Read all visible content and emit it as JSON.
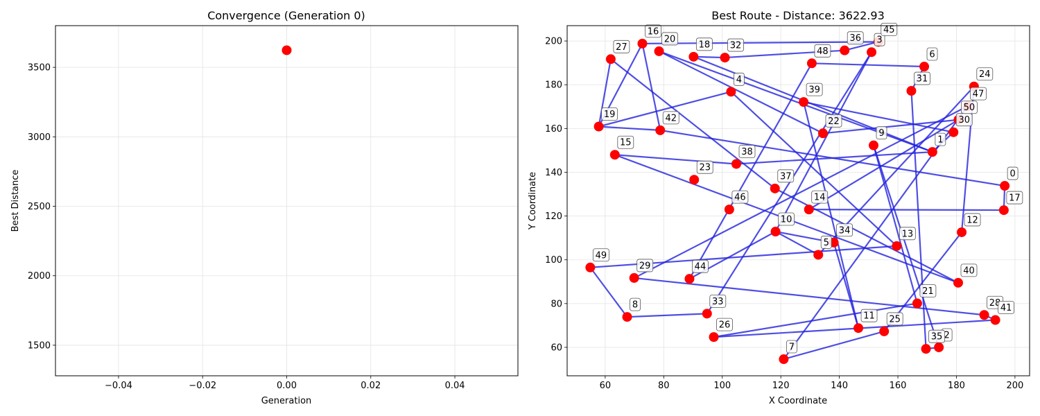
{
  "chart_data": [
    {
      "type": "scatter",
      "title": "Convergence (Generation 0)",
      "xlabel": "Generation",
      "ylabel": "Best Distance",
      "xlim": [
        -0.055,
        0.055
      ],
      "ylim": [
        1280,
        3800
      ],
      "xticks": [
        -0.04,
        -0.02,
        0.0,
        0.02,
        0.04
      ],
      "xtick_labels": [
        "−0.04",
        "−0.02",
        "0.00",
        "0.02",
        "0.04"
      ],
      "yticks": [
        1500,
        2000,
        2500,
        3000,
        3500
      ],
      "ytick_labels": [
        "1500",
        "2000",
        "2500",
        "3000",
        "3500"
      ],
      "grid": true,
      "marker_color": "#ff0000",
      "points": [
        {
          "x": 0.0,
          "y": 3622.93
        }
      ]
    },
    {
      "type": "line",
      "title": "Best Route - Distance: 3622.93",
      "xlabel": "X Coordinate",
      "ylabel": "Y Coordinate",
      "xlim": [
        47,
        205
      ],
      "ylim": [
        47,
        207
      ],
      "xticks": [
        60,
        80,
        100,
        120,
        140,
        160,
        180,
        200
      ],
      "xtick_labels": [
        "60",
        "80",
        "100",
        "120",
        "140",
        "160",
        "180",
        "200"
      ],
      "yticks": [
        60,
        80,
        100,
        120,
        140,
        160,
        180,
        200
      ],
      "ytick_labels": [
        "60",
        "80",
        "100",
        "120",
        "140",
        "160",
        "180",
        "200"
      ],
      "grid": true,
      "line_color": "#2222dd",
      "marker_color": "#ff0000",
      "cities": [
        {
          "id": "0",
          "x": 196.5,
          "y": 133.8
        },
        {
          "id": "1",
          "x": 171.8,
          "y": 149.3
        },
        {
          "id": "2",
          "x": 174.0,
          "y": 60.0
        },
        {
          "id": "3",
          "x": 151.0,
          "y": 194.9
        },
        {
          "id": "4",
          "x": 103.0,
          "y": 176.8
        },
        {
          "id": "5",
          "x": 132.8,
          "y": 102.3
        },
        {
          "id": "6",
          "x": 169.0,
          "y": 188.3
        },
        {
          "id": "7",
          "x": 121.0,
          "y": 54.6
        },
        {
          "id": "8",
          "x": 67.5,
          "y": 73.9
        },
        {
          "id": "9",
          "x": 151.7,
          "y": 152.3
        },
        {
          "id": "10",
          "x": 118.2,
          "y": 112.9
        },
        {
          "id": "11",
          "x": 146.5,
          "y": 68.8
        },
        {
          "id": "12",
          "x": 181.8,
          "y": 112.6
        },
        {
          "id": "13",
          "x": 159.6,
          "y": 106.3
        },
        {
          "id": "14",
          "x": 129.6,
          "y": 123.0
        },
        {
          "id": "15",
          "x": 63.3,
          "y": 148.0
        },
        {
          "id": "16",
          "x": 72.7,
          "y": 198.8
        },
        {
          "id": "17",
          "x": 196.2,
          "y": 122.7
        },
        {
          "id": "18",
          "x": 90.2,
          "y": 192.8
        },
        {
          "id": "19",
          "x": 57.8,
          "y": 160.9
        },
        {
          "id": "20",
          "x": 78.4,
          "y": 195.3
        },
        {
          "id": "21",
          "x": 166.6,
          "y": 80.1
        },
        {
          "id": "22",
          "x": 134.4,
          "y": 157.8
        },
        {
          "id": "23",
          "x": 90.4,
          "y": 136.6
        },
        {
          "id": "24",
          "x": 186.0,
          "y": 179.2
        },
        {
          "id": "25",
          "x": 155.3,
          "y": 67.3
        },
        {
          "id": "26",
          "x": 97.1,
          "y": 64.7
        },
        {
          "id": "27",
          "x": 61.9,
          "y": 191.7
        },
        {
          "id": "28",
          "x": 189.5,
          "y": 74.8
        },
        {
          "id": "29",
          "x": 69.9,
          "y": 91.7
        },
        {
          "id": "30",
          "x": 179.0,
          "y": 158.3
        },
        {
          "id": "31",
          "x": 164.6,
          "y": 177.2
        },
        {
          "id": "32",
          "x": 100.9,
          "y": 192.4
        },
        {
          "id": "33",
          "x": 94.8,
          "y": 75.4
        },
        {
          "id": "34",
          "x": 138.1,
          "y": 107.9
        },
        {
          "id": "35",
          "x": 169.6,
          "y": 59.3
        },
        {
          "id": "36",
          "x": 141.8,
          "y": 195.7
        },
        {
          "id": "37",
          "x": 118.0,
          "y": 132.6
        },
        {
          "id": "38",
          "x": 104.8,
          "y": 143.8
        },
        {
          "id": "39",
          "x": 127.8,
          "y": 172.1
        },
        {
          "id": "40",
          "x": 180.6,
          "y": 89.5
        },
        {
          "id": "41",
          "x": 193.3,
          "y": 72.5
        },
        {
          "id": "42",
          "x": 78.8,
          "y": 159.2
        },
        {
          "id": "44",
          "x": 88.8,
          "y": 91.3
        },
        {
          "id": "45",
          "x": 153.3,
          "y": 199.6
        },
        {
          "id": "46",
          "x": 102.4,
          "y": 123.0
        },
        {
          "id": "47",
          "x": 183.8,
          "y": 170.2
        },
        {
          "id": "48",
          "x": 130.6,
          "y": 189.8
        },
        {
          "id": "49",
          "x": 54.9,
          "y": 96.5
        },
        {
          "id": "50",
          "x": 180.7,
          "y": 164.0
        }
      ],
      "route_order": [
        "16",
        "45",
        "36",
        "32",
        "18",
        "1",
        "20",
        "22",
        "50",
        "14",
        "17",
        "0",
        "42",
        "19",
        "4",
        "13",
        "49",
        "8",
        "33",
        "3",
        "10",
        "44",
        "48",
        "6",
        "31",
        "35",
        "2",
        "9",
        "21",
        "26",
        "41",
        "28",
        "29",
        "47",
        "7",
        "25",
        "12",
        "24",
        "5",
        "10",
        "34",
        "11",
        "39",
        "30",
        "1",
        "38",
        "15",
        "40",
        "37",
        "27",
        "19",
        "16",
        "42"
      ]
    }
  ]
}
